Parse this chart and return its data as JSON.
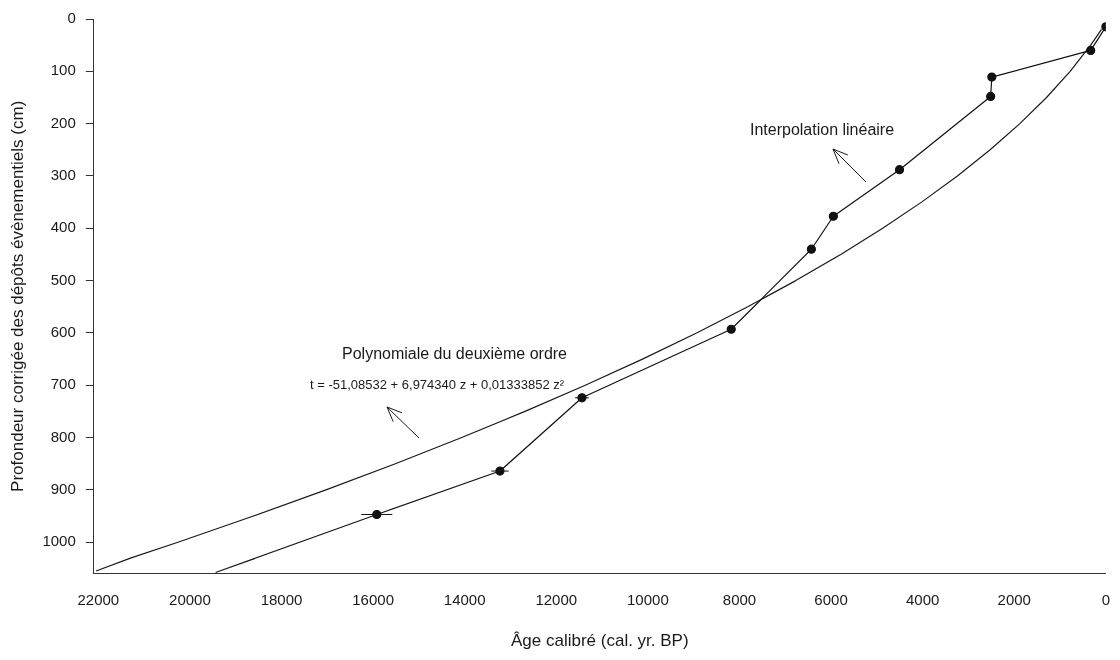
{
  "chart_data": {
    "type": "line",
    "xlabel": "Âge calibré (cal. yr. BP)",
    "ylabel": "Profondeur corrigée des dépôts évènementiels (cm)",
    "xlim": [
      22100,
      0
    ],
    "ylim": [
      1060,
      0
    ],
    "xticks": [
      22000,
      20000,
      18000,
      16000,
      14000,
      12000,
      10000,
      8000,
      6000,
      4000,
      2000,
      0
    ],
    "yticks": [
      0,
      100,
      200,
      300,
      400,
      500,
      600,
      700,
      800,
      900,
      1000
    ],
    "grid": false,
    "legend": false,
    "annotations": [
      "Interpolation linéaire",
      "Polynomiale du deuxième ordre",
      "t = -51,08532 + 6,974340 z + 0,01333852 z²"
    ],
    "series": [
      {
        "color": "#1a1a1a",
        "x": [
          15920,
          19440
        ],
        "values": [
          947,
          1058
        ]
      },
      {
        "color": "#111111",
        "marker": "circle",
        "x": [
          0,
          330,
          2490,
          2515,
          4505,
          5950,
          6430,
          8180,
          11440,
          13230,
          15920
        ],
        "values": [
          15,
          60,
          111,
          148,
          288,
          377,
          440,
          593,
          724,
          864,
          947
        ],
        "xerrors": [
          null,
          null,
          null,
          null,
          null,
          null,
          null,
          null,
          150,
          190,
          340
        ]
      },
      {
        "color": "#1a1a1a",
        "marker": "none",
        "x": [
          94,
          331,
          779,
          1295,
          1878,
          2526,
          3241,
          4024,
          4873,
          5788,
          6771,
          7820,
          8936,
          10118,
          11367,
          12683,
          14065,
          15514,
          17030,
          18613,
          20262,
          21284,
          22050
        ],
        "values": [
          20,
          50,
          100,
          150,
          200,
          250,
          300,
          350,
          400,
          450,
          500,
          550,
          600,
          650,
          700,
          750,
          800,
          850,
          900,
          950,
          1000,
          1030,
          1055
        ]
      }
    ]
  }
}
